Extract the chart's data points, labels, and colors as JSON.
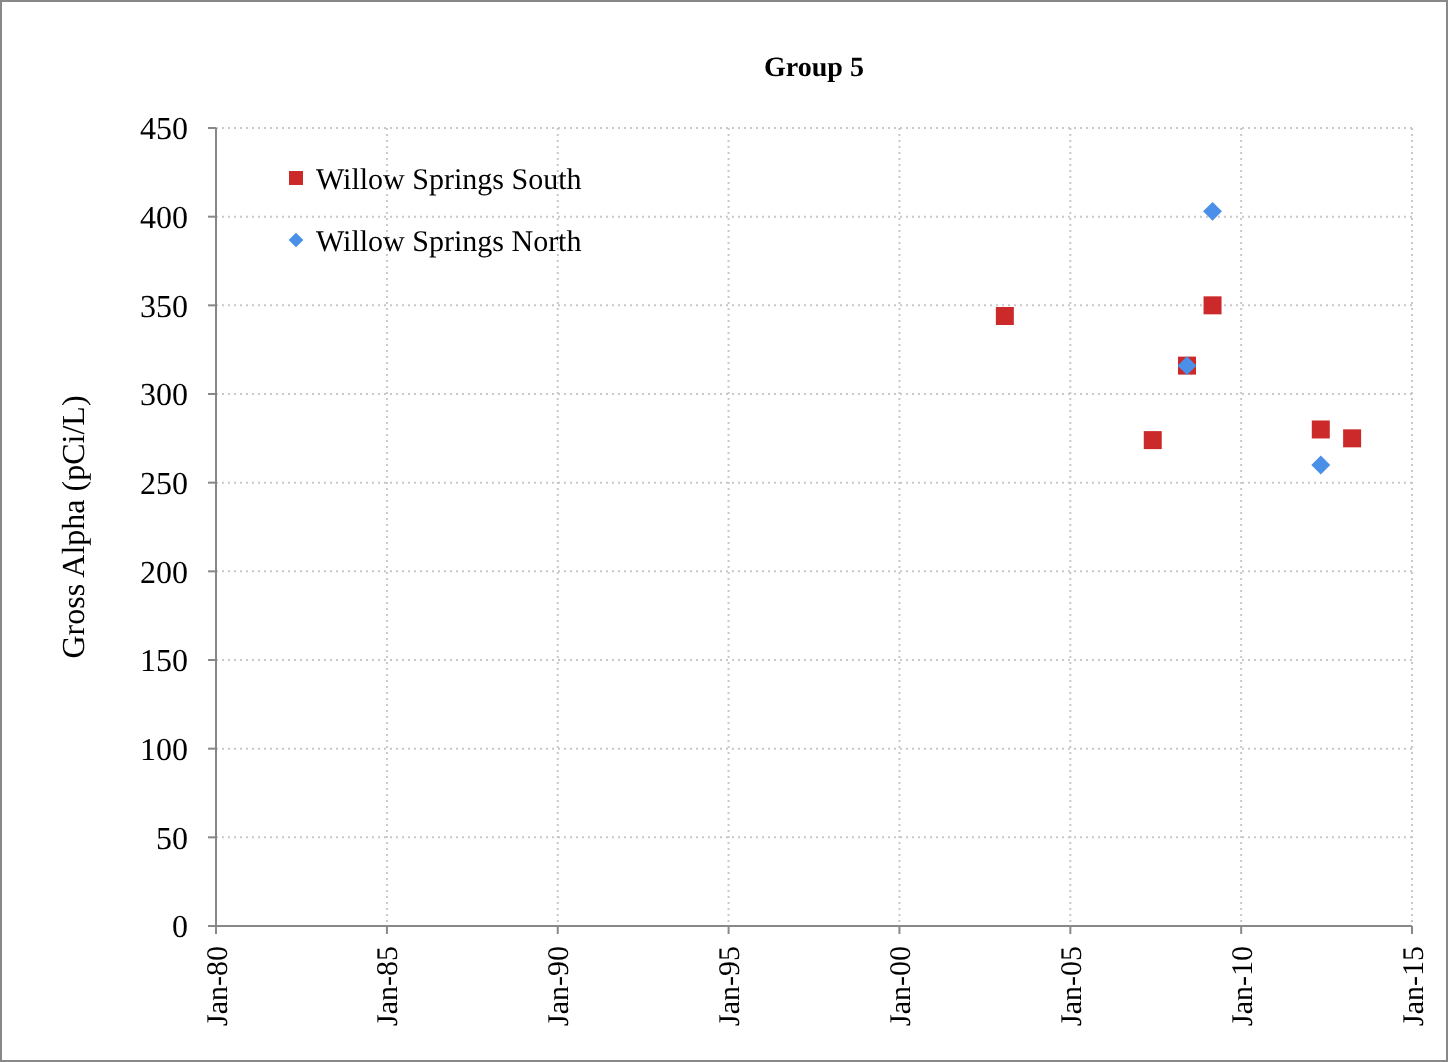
{
  "chart_data": {
    "type": "scatter",
    "title": "Group 5",
    "ylabel": "Gross Alpha (pCi/L)",
    "xlim": [
      "1980-01",
      "2015-01"
    ],
    "xticks": [
      {
        "value": "1980-01",
        "label": "Jan-80"
      },
      {
        "value": "1985-01",
        "label": "Jan-85"
      },
      {
        "value": "1990-01",
        "label": "Jan-90"
      },
      {
        "value": "1995-01",
        "label": "Jan-95"
      },
      {
        "value": "2000-01",
        "label": "Jan-00"
      },
      {
        "value": "2005-01",
        "label": "Jan-05"
      },
      {
        "value": "2010-01",
        "label": "Jan-10"
      },
      {
        "value": "2015-01",
        "label": "Jan-15"
      }
    ],
    "ylim": [
      0,
      450
    ],
    "yticks": [
      0,
      50,
      100,
      150,
      200,
      250,
      300,
      350,
      400,
      450
    ],
    "grid": true,
    "legend": "top left",
    "series": [
      {
        "name": "Willow Springs South",
        "color": "#cc2a2a",
        "marker": "square",
        "x": [
          "2003-02",
          "2007-06",
          "2008-06",
          "2009-03",
          "2012-05",
          "2013-04"
        ],
        "values": [
          344,
          274,
          316,
          350,
          280,
          275
        ]
      },
      {
        "name": "Willow Springs North",
        "color": "#4a90e8",
        "marker": "diamond",
        "x": [
          "2008-06",
          "2009-03",
          "2012-05"
        ],
        "values": [
          316,
          403,
          260
        ]
      }
    ]
  }
}
